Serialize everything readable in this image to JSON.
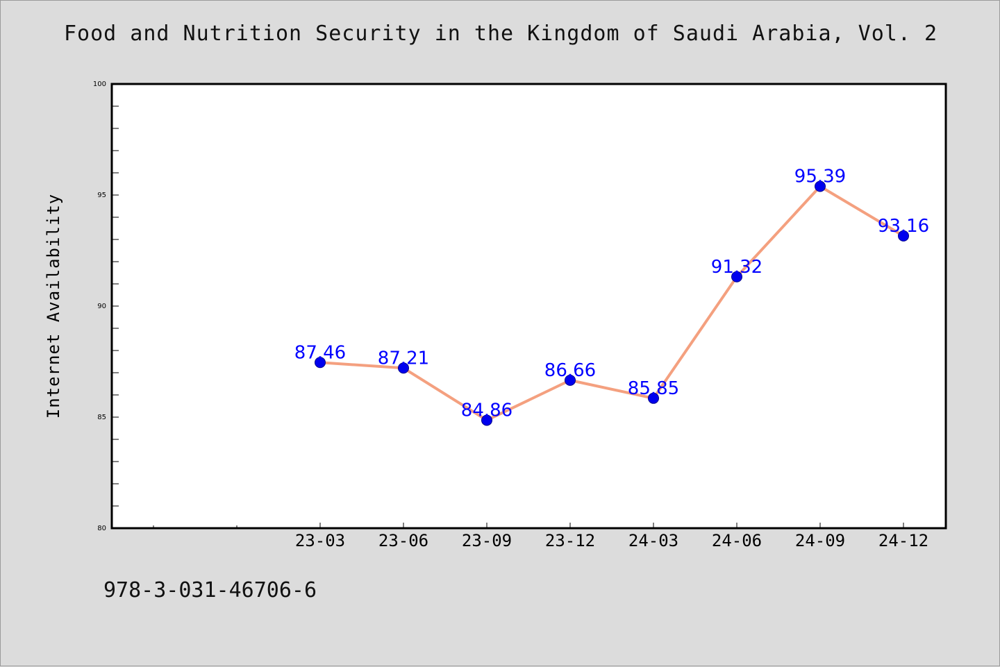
{
  "title": "Food and Nutrition Security in the Kingdom of Saudi Arabia, Vol. 2",
  "footer": {
    "isbn": "978-3-031-46706-6"
  },
  "colors": {
    "background": "#dcdcdc",
    "plot_background": "#ffffff",
    "line": "#f4a07f",
    "marker": "#0000ee",
    "data_label": "#0000ff"
  },
  "chart_data": {
    "type": "line",
    "ylabel": "Internet Availability",
    "xlabel": "",
    "categories": [
      "23-03",
      "23-06",
      "23-09",
      "23-12",
      "24-03",
      "24-06",
      "24-09",
      "24-12"
    ],
    "series": [
      {
        "values": [
          87.46,
          87.21,
          84.86,
          86.66,
          85.85,
          91.32,
          95.39,
          93.16
        ]
      }
    ],
    "data_labels": [
      "87.46",
      "87.21",
      "84.86",
      "86.66",
      "85.85",
      "91.32",
      "95.39",
      "93.16"
    ],
    "ylim": [
      80,
      100
    ],
    "yticks": [
      "80",
      "85",
      "90",
      "95",
      "100"
    ],
    "grid": false,
    "legend": "none"
  }
}
